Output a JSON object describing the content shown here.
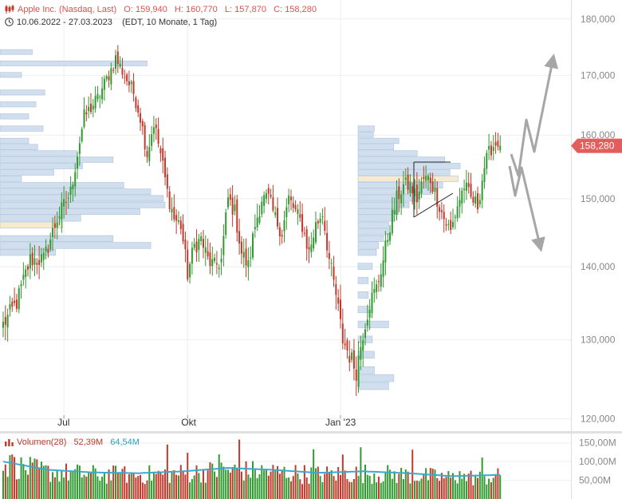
{
  "header": {
    "title": "Apple Inc. (Nasdaq, Last)",
    "open_label": "O:",
    "open": "159,940",
    "high_label": "H:",
    "high": "160,770",
    "low_label": "L:",
    "low": "157,870",
    "close_label": "C:",
    "close": "158,280",
    "range": "10.06.2022 - 27.03.2023",
    "range_note": "(EDT, 10 Monate, 1 Tag)"
  },
  "volume_header": {
    "name": "Volumen(28)",
    "value_a": "52,39M",
    "value_b": "64,54M"
  },
  "colors": {
    "up": "#2f9a2f",
    "down": "#c0392b",
    "grid": "#eeeeee",
    "price_badge": "#e35d5d",
    "volume_ma": "#3ea7cf",
    "profile": "#c9d8ea",
    "profile_poc": "#f7e6c4",
    "arrow": "#a6a6a6",
    "header_title": "#d9534f"
  },
  "chart_data": {
    "type": "candlestick",
    "x_tick_labels": [
      "Jul",
      "Okt",
      "Jan '23"
    ],
    "y_tick_labels": [
      "180,000",
      "170,000",
      "160,000",
      "150,000",
      "140,000",
      "130,000",
      "120,000"
    ],
    "y_tick_values": [
      180,
      170,
      160,
      150,
      140,
      130,
      120
    ],
    "ylim": [
      118.5,
      183.5
    ],
    "y_scale": "log",
    "last_price": 158.28,
    "last_price_label": "158,280",
    "grid": true,
    "anchors": [
      [
        0,
        132
      ],
      [
        6,
        135
      ],
      [
        12,
        141
      ],
      [
        18,
        141
      ],
      [
        24,
        147
      ],
      [
        30,
        151
      ],
      [
        36,
        163
      ],
      [
        42,
        166
      ],
      [
        48,
        171
      ],
      [
        50,
        173
      ],
      [
        54,
        170
      ],
      [
        58,
        167
      ],
      [
        61,
        163
      ],
      [
        64,
        157
      ],
      [
        67,
        162
      ],
      [
        70,
        157
      ],
      [
        73,
        151
      ],
      [
        76,
        147
      ],
      [
        79,
        146
      ],
      [
        82,
        139
      ],
      [
        85,
        143
      ],
      [
        88,
        144
      ],
      [
        91,
        141
      ],
      [
        94,
        140
      ],
      [
        97,
        141
      ],
      [
        100,
        150
      ],
      [
        103,
        148
      ],
      [
        106,
        142
      ],
      [
        109,
        140
      ],
      [
        112,
        146
      ],
      [
        115,
        150
      ],
      [
        118,
        150
      ],
      [
        121,
        147
      ],
      [
        124,
        145
      ],
      [
        127,
        150
      ],
      [
        130,
        148
      ],
      [
        133,
        146
      ],
      [
        136,
        142
      ],
      [
        139,
        146
      ],
      [
        142,
        148
      ],
      [
        145,
        141
      ],
      [
        148,
        136
      ],
      [
        151,
        130
      ],
      [
        154,
        128
      ],
      [
        157,
        126
      ],
      [
        160,
        131
      ],
      [
        163,
        135
      ],
      [
        166,
        137
      ],
      [
        169,
        141
      ],
      [
        172,
        146
      ],
      [
        175,
        150
      ],
      [
        178,
        152
      ],
      [
        181,
        152
      ],
      [
        184,
        150
      ],
      [
        187,
        153
      ],
      [
        190,
        153
      ],
      [
        193,
        150
      ],
      [
        196,
        147
      ],
      [
        199,
        145
      ],
      [
        202,
        149
      ],
      [
        205,
        152
      ],
      [
        208,
        150
      ],
      [
        211,
        149
      ],
      [
        214,
        155
      ],
      [
        217,
        158
      ],
      [
        220,
        159
      ],
      [
        221,
        158.3
      ]
    ],
    "volume_ylim": [
      0,
      175
    ],
    "volume_tick_labels": [
      "150,00M",
      "100,00M",
      "50,00M"
    ],
    "volume_tick_values": [
      150,
      100,
      50
    ],
    "volume_ma_anchors": [
      [
        0,
        100
      ],
      [
        20,
        78
      ],
      [
        40,
        71
      ],
      [
        60,
        69
      ],
      [
        80,
        74
      ],
      [
        100,
        83
      ],
      [
        120,
        78
      ],
      [
        140,
        70
      ],
      [
        160,
        74
      ],
      [
        180,
        69
      ],
      [
        200,
        61
      ],
      [
        221,
        64.5
      ]
    ],
    "volume_profile_left": [
      [
        174,
        0.18
      ],
      [
        172,
        0.82
      ],
      [
        170,
        0.12
      ],
      [
        167,
        0.25
      ],
      [
        165,
        0.2
      ],
      [
        163,
        0.16
      ],
      [
        161,
        0.24
      ],
      [
        159,
        0.16
      ],
      [
        158,
        0.21
      ],
      [
        157,
        0.43
      ],
      [
        156,
        0.63
      ],
      [
        155,
        0.46
      ],
      [
        154,
        0.3
      ],
      [
        153,
        0.12
      ],
      [
        152,
        0.69
      ],
      [
        151,
        0.84
      ],
      [
        150,
        0.91
      ],
      [
        149,
        0.92
      ],
      [
        148,
        0.78
      ],
      [
        147,
        0.45
      ],
      [
        146,
        0.35
      ],
      [
        144,
        0.63
      ],
      [
        143,
        0.84
      ],
      [
        142,
        0.31
      ]
    ],
    "volume_profile_right": [
      [
        161,
        0.16
      ],
      [
        160,
        0.15
      ],
      [
        159,
        0.4
      ],
      [
        158,
        0.35
      ],
      [
        157,
        0.58
      ],
      [
        156,
        0.85
      ],
      [
        155,
        1.0
      ],
      [
        154,
        0.9
      ],
      [
        153,
        0.98
      ],
      [
        152,
        0.83
      ],
      [
        151,
        0.72
      ],
      [
        150,
        0.6
      ],
      [
        149,
        0.5
      ],
      [
        148,
        0.4
      ],
      [
        147,
        0.35
      ],
      [
        146,
        0.3
      ],
      [
        145,
        0.3
      ],
      [
        144,
        0.25
      ],
      [
        143,
        0.2
      ],
      [
        142,
        0.18
      ],
      [
        140,
        0.14
      ],
      [
        138,
        0.1
      ],
      [
        136,
        0.1
      ],
      [
        134,
        0.12
      ],
      [
        132,
        0.3
      ],
      [
        130,
        0.14
      ],
      [
        128,
        0.16
      ],
      [
        126,
        0.16
      ],
      [
        125,
        0.35
      ],
      [
        124,
        0.3
      ]
    ]
  }
}
